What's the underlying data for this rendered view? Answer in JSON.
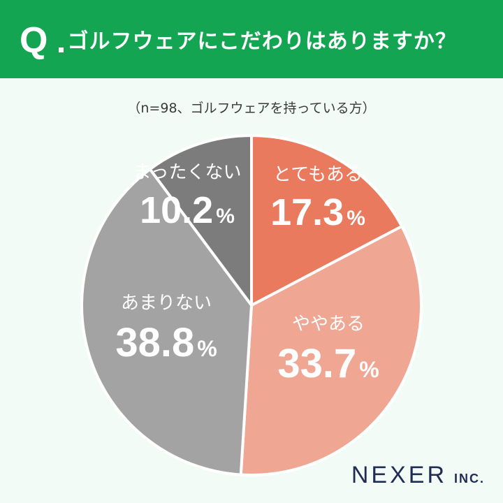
{
  "header": {
    "q_mark": "Q",
    "question": "ゴルフウェアにこだわりはありますか？",
    "background_color": "#14a552"
  },
  "note": "（n=98、ゴルフウェアを持っている方）",
  "chart_data": {
    "type": "pie",
    "title": "ゴルフウェアにこだわりはありますか？",
    "subtitle": "（n=98、ゴルフウェアを持っている方）",
    "start_angle": "12 o'clock",
    "direction": "clockwise",
    "slices": [
      {
        "label": "とてもある",
        "value": 17.3,
        "color": "#ea7a5e"
      },
      {
        "label": "ややある",
        "value": 33.7,
        "color": "#efa793"
      },
      {
        "label": "あまりない",
        "value": 38.8,
        "color": "#a3a3a3"
      },
      {
        "label": "まったくない",
        "value": 10.2,
        "color": "#7c7c7c"
      }
    ],
    "unit": "%"
  },
  "logo": {
    "main": "NEXER",
    "sub": "INC."
  }
}
